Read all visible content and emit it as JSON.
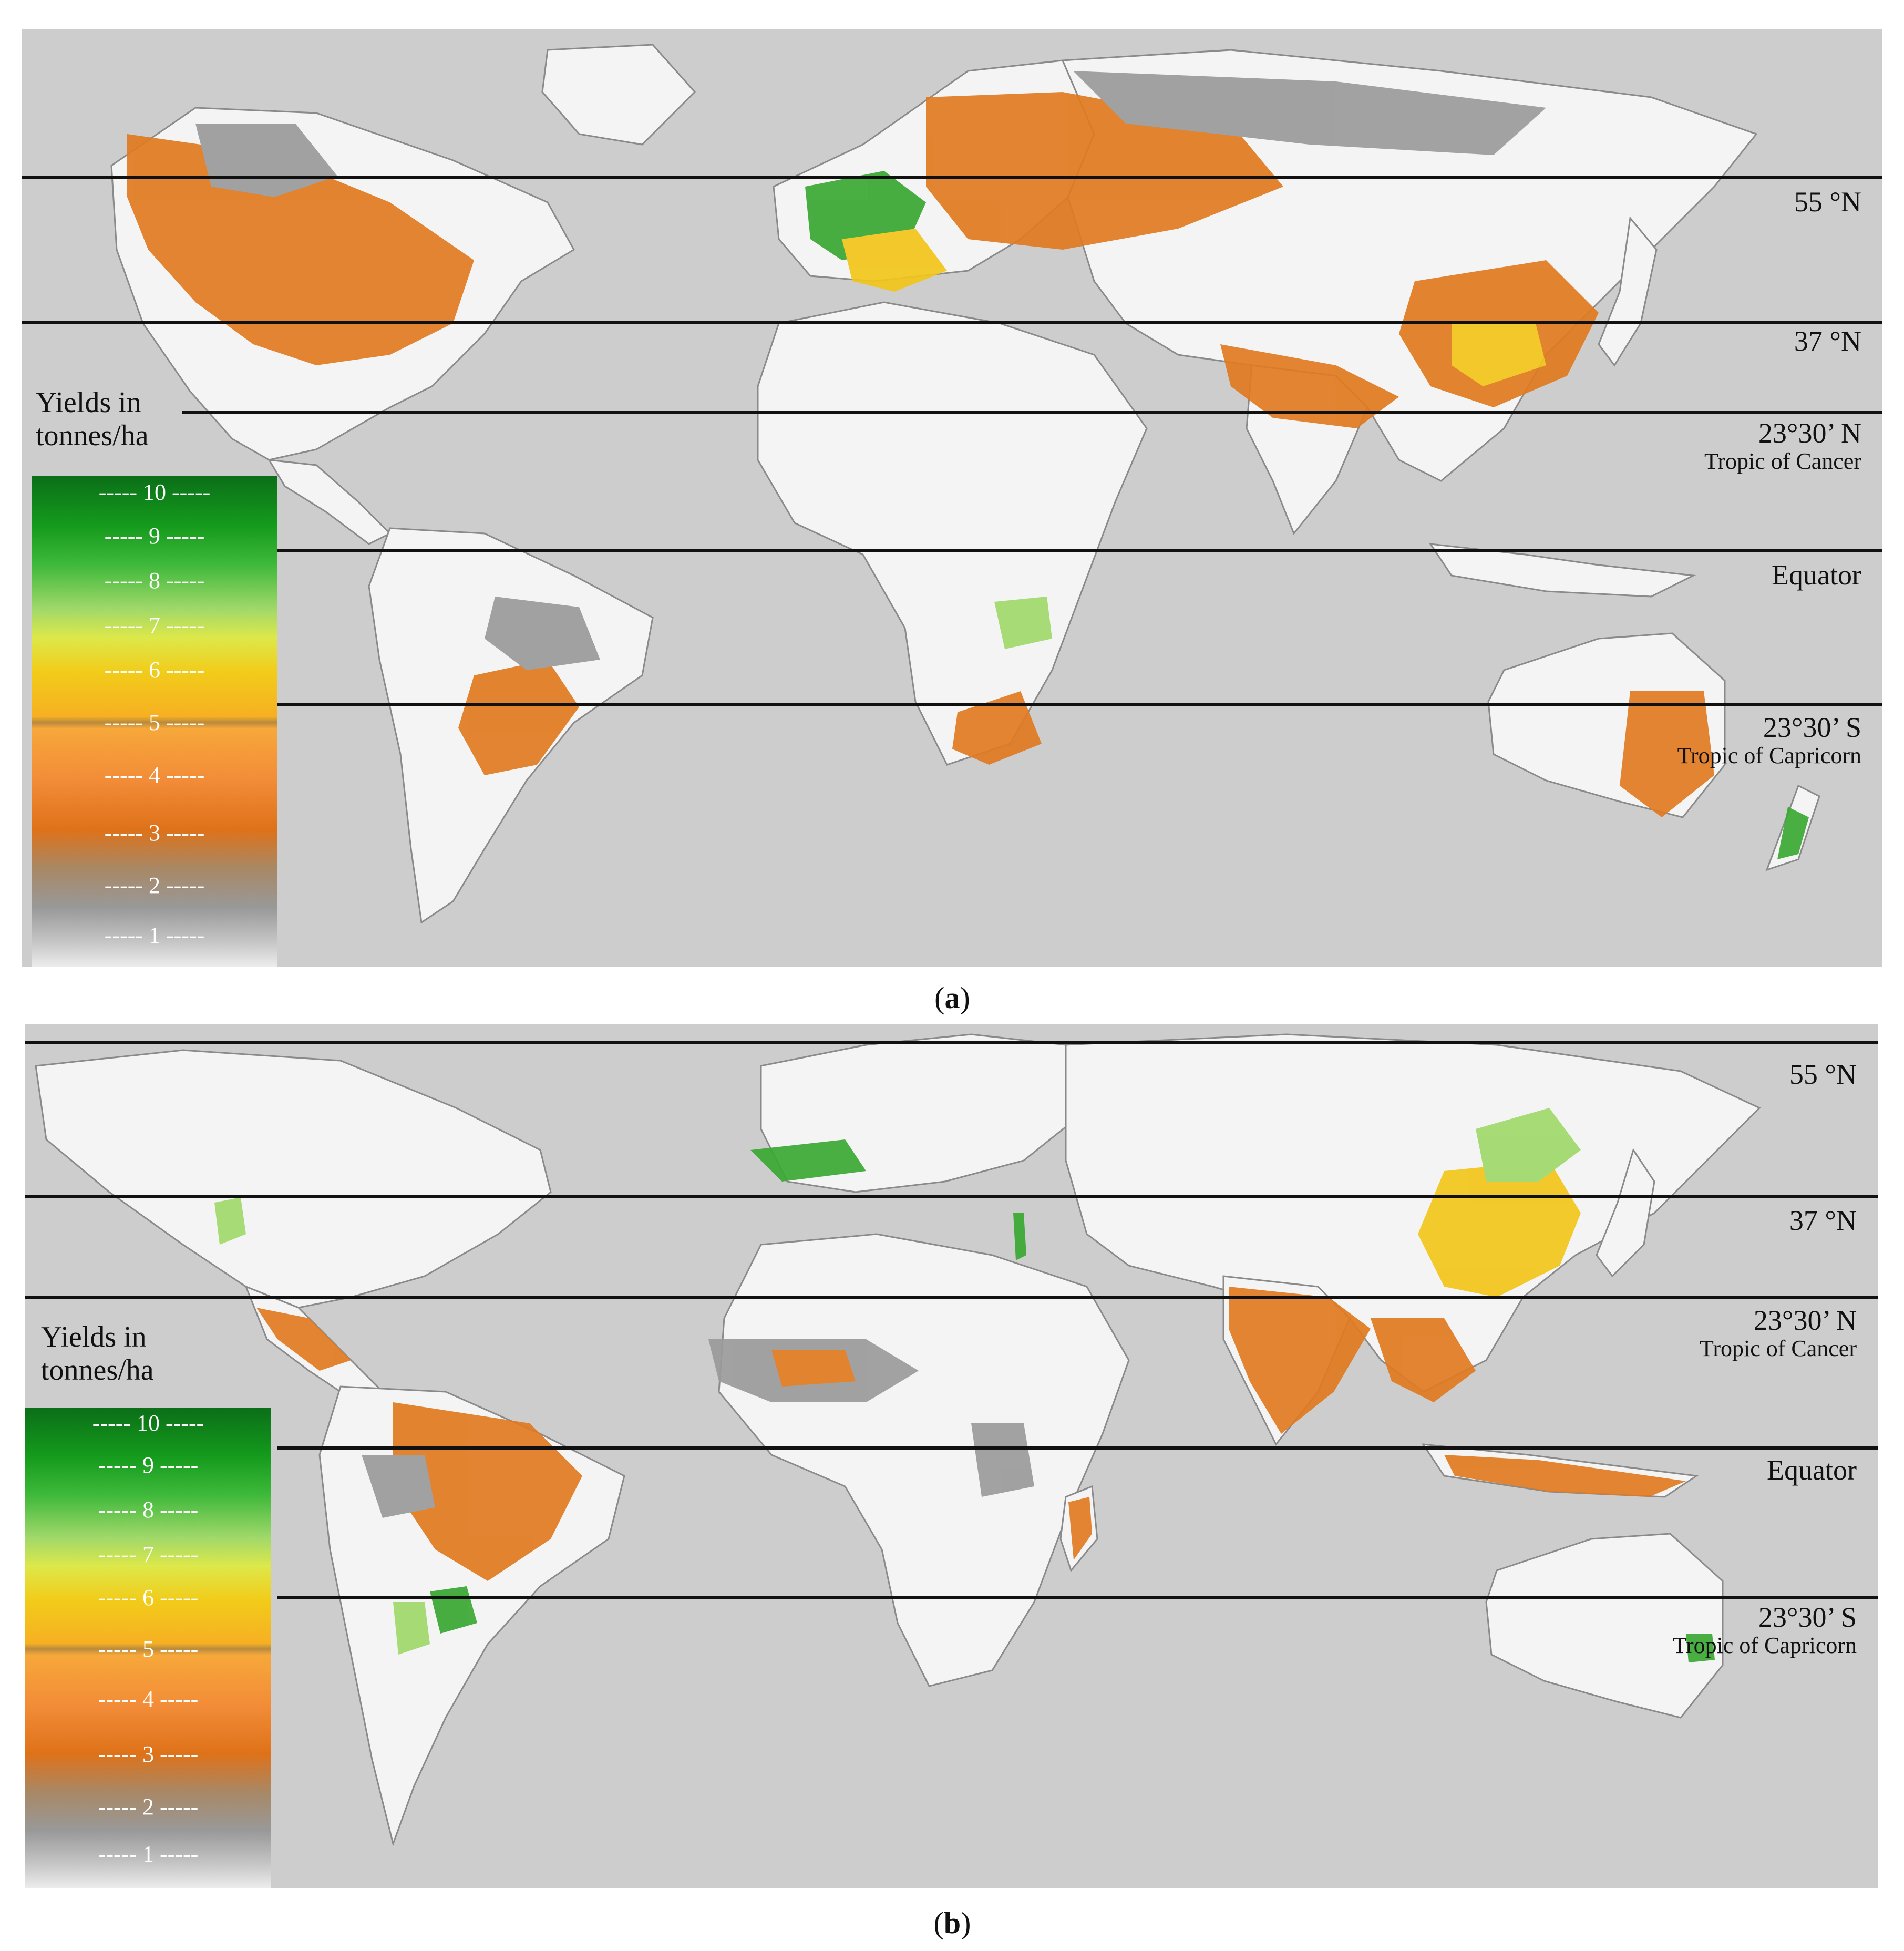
{
  "panels": [
    {
      "caption_open": "(",
      "caption_letter": "a",
      "caption_close": ")",
      "legend": {
        "title_line1": "Yields in",
        "title_line2": "tonnes/ha",
        "ticks": [
          "----- 10 -----",
          "----- 9 -----",
          "----- 8 -----",
          "----- 7 -----",
          "----- 6 -----",
          "----- 5 -----",
          "----- 4 -----",
          "----- 3 -----",
          "----- 2 -----",
          "----- 1 -----"
        ]
      },
      "latitudes": [
        {
          "label": "55 °N",
          "sub": ""
        },
        {
          "label": "37 °N",
          "sub": ""
        },
        {
          "label": "23°30’ N",
          "sub": "Tropic of Cancer"
        },
        {
          "label": "Equator",
          "sub": ""
        },
        {
          "label": "23°30’ S",
          "sub": "Tropic of Capricorn"
        }
      ]
    },
    {
      "caption_open": "(",
      "caption_letter": "b",
      "caption_close": ")",
      "legend": {
        "title_line1": "Yields in",
        "title_line2": "tonnes/ha",
        "ticks": [
          "----- 10 -----",
          "----- 9 -----",
          "----- 8 -----",
          "----- 7 -----",
          "----- 6 -----",
          "----- 5 -----",
          "----- 4 -----",
          "----- 3 -----",
          "----- 2 -----",
          "----- 1 -----"
        ]
      },
      "latitudes": [
        {
          "label": "55 °N",
          "sub": ""
        },
        {
          "label": "37 °N",
          "sub": ""
        },
        {
          "label": "23°30’ N",
          "sub": "Tropic of Cancer"
        },
        {
          "label": "Equator",
          "sub": ""
        },
        {
          "label": "23°30’ S",
          "sub": "Tropic of Capricorn"
        }
      ]
    }
  ],
  "colors": {
    "ocean": "#cdcdcd",
    "land": "#f4f4f4",
    "yield_low": "#9a9a9a",
    "yield_mid": "#e07a1f",
    "yield_high": "#f2c51a",
    "yield_top": "#3aa832"
  }
}
